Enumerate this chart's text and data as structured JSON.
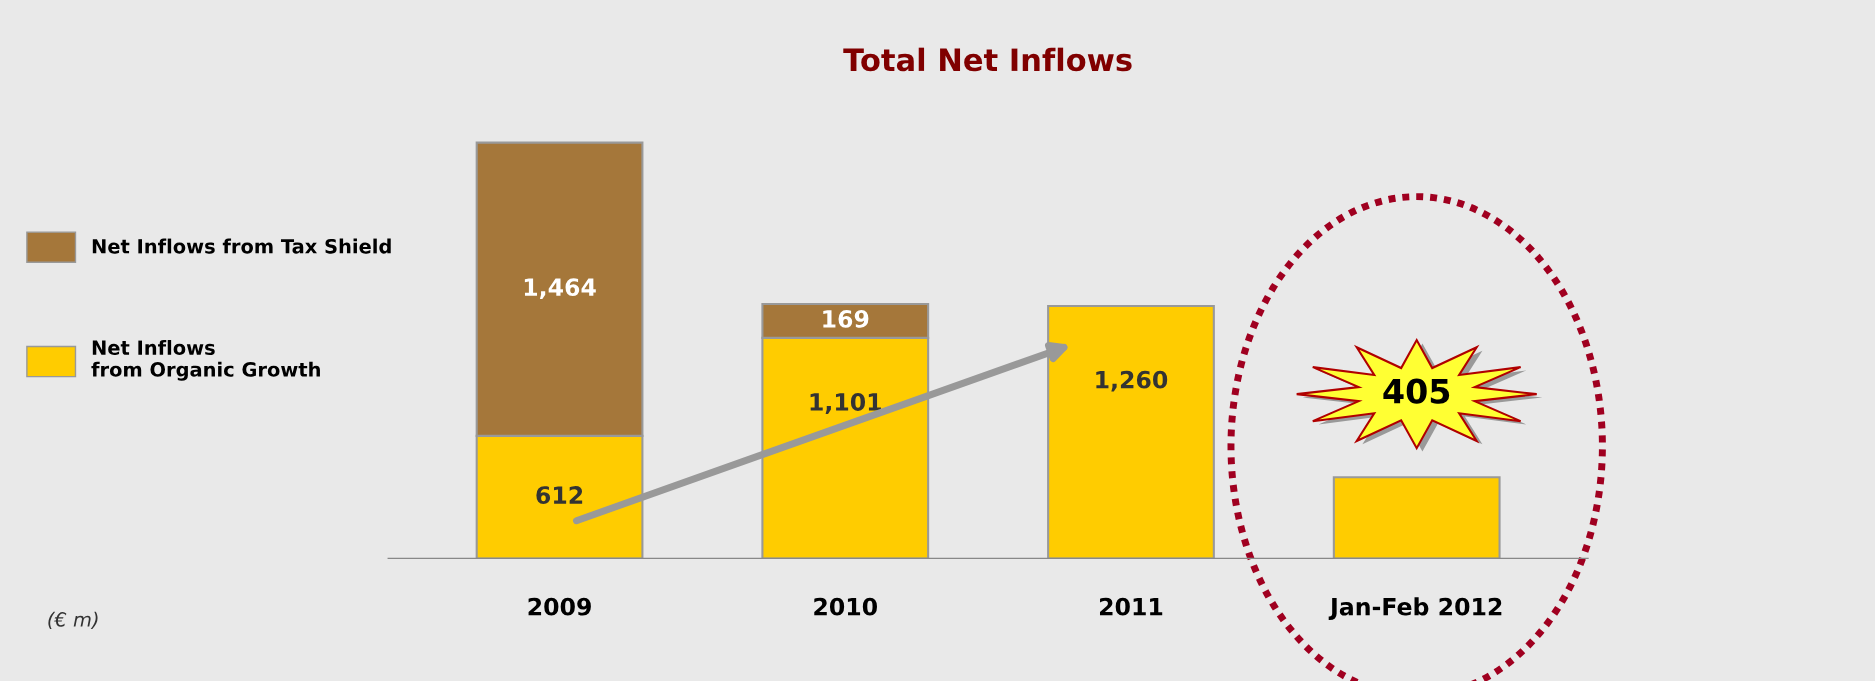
{
  "chart_data": {
    "type": "bar",
    "title": "Total Net Inflows",
    "stacked": true,
    "categories": [
      "2009",
      "2010",
      "2011",
      "Jan-Feb 2012"
    ],
    "series": [
      {
        "name": "Net Inflows\nfrom Organic Growth",
        "color": "#ffcc00",
        "values": [
          612,
          1101,
          1260,
          405
        ],
        "value_labels": [
          "612",
          "1,101",
          "1,260",
          "405"
        ]
      },
      {
        "name": "Net Inflows from Tax Shield",
        "color": "#a5773a",
        "values": [
          1464,
          169,
          null,
          null
        ],
        "value_labels": [
          "1,464",
          "169",
          null,
          null
        ]
      }
    ],
    "legend": "left",
    "annotations": [
      "(€ m)"
    ]
  }
}
